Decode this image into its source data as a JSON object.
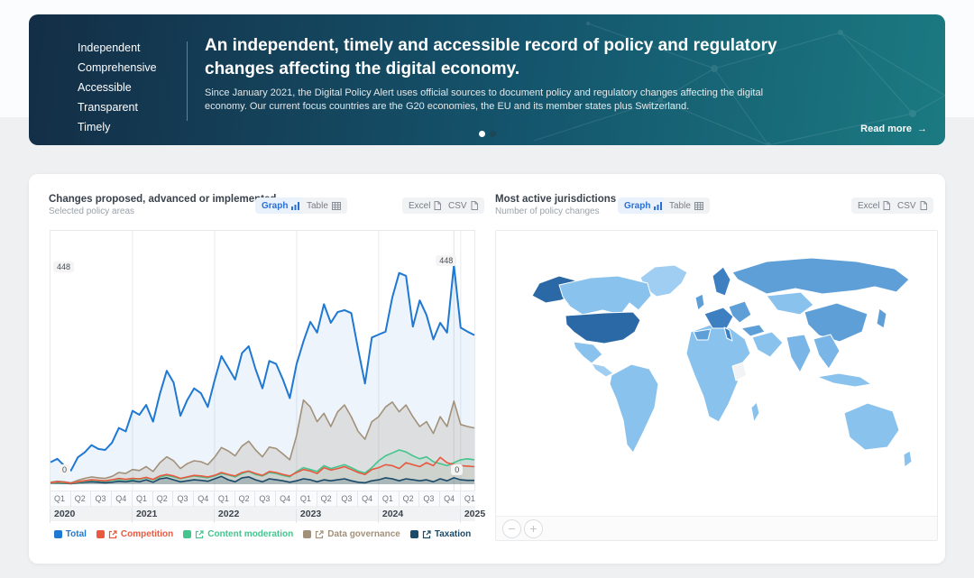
{
  "hero": {
    "qualities": [
      "Independent",
      "Comprehensive",
      "Accessible",
      "Transparent",
      "Timely"
    ],
    "title": "An independent, timely and accessible record of policy and regulatory changes affecting the digital economy.",
    "description": "Since January 2021, the Digital Policy Alert uses official sources to document policy and regulatory changes affecting the digital economy. Our current focus countries are the G20 economies, the EU and its member states plus Switzerland.",
    "read_more_label": "Read more",
    "read_more_arrow": "→",
    "carousel": {
      "dots": 2,
      "active": 0
    }
  },
  "left_panel": {
    "title": "Changes proposed, advanced or implemented",
    "subtitle": "Selected policy areas",
    "graph_label": "Graph",
    "table_label": "Table",
    "excel_label": "Excel",
    "csv_label": "CSV"
  },
  "right_panel": {
    "title": "Most active jurisdictions",
    "subtitle": "Number of policy changes",
    "graph_label": "Graph",
    "table_label": "Table",
    "excel_label": "Excel",
    "csv_label": "CSV",
    "zoom_out_label": "−",
    "zoom_in_label": "+"
  },
  "chart_data": [
    {
      "type": "line",
      "title": "Changes proposed, advanced or implemented",
      "subtitle": "Selected policy areas",
      "x_unit": "month",
      "x_range": [
        "2020-01",
        "2025-03"
      ],
      "quarter_labels": [
        "Q1",
        "Q2",
        "Q3",
        "Q4",
        "Q1",
        "Q2",
        "Q3",
        "Q4",
        "Q1",
        "Q2",
        "Q3",
        "Q4",
        "Q1",
        "Q2",
        "Q3",
        "Q4",
        "Q1",
        "Q2",
        "Q3",
        "Q4",
        "Q1"
      ],
      "year_labels": [
        "2020",
        "2021",
        "2022",
        "2023",
        "2024",
        "2025"
      ],
      "y_axis": {
        "max": 448,
        "max_label": "448",
        "min_label": "0",
        "grid": "vertical-years"
      },
      "legend_position": "bottom-center",
      "series": [
        {
          "name": "Total",
          "color": "#1f78d1",
          "fill": "rgba(31,120,209,0.08)",
          "linked": false,
          "values": [
            45,
            52,
            38,
            28,
            55,
            65,
            80,
            72,
            70,
            85,
            115,
            108,
            150,
            142,
            162,
            128,
            185,
            232,
            208,
            140,
            172,
            196,
            186,
            158,
            212,
            262,
            238,
            214,
            268,
            282,
            235,
            196,
            252,
            246,
            214,
            176,
            246,
            292,
            332,
            310,
            368,
            330,
            352,
            356,
            350,
            276,
            206,
            300,
            306,
            312,
            382,
            432,
            426,
            322,
            376,
            346,
            296,
            330,
            310,
            448,
            320,
            312,
            305
          ]
        },
        {
          "name": "Competition",
          "color": "#e8593f",
          "fill": "rgba(232,89,63,0.06)",
          "linked": true,
          "values": [
            3,
            5,
            4,
            2,
            5,
            7,
            9,
            8,
            7,
            9,
            12,
            10,
            12,
            11,
            14,
            10,
            17,
            20,
            17,
            12,
            15,
            18,
            17,
            15,
            18,
            24,
            20,
            17,
            24,
            27,
            22,
            18,
            26,
            24,
            20,
            17,
            24,
            30,
            27,
            22,
            34,
            29,
            32,
            36,
            30,
            24,
            20,
            30,
            34,
            40,
            38,
            32,
            44,
            40,
            36,
            44,
            38,
            55,
            44,
            40,
            38,
            37,
            36
          ]
        },
        {
          "name": "Content moderation",
          "color": "#45c48f",
          "fill": "rgba(69,196,143,0.10)",
          "linked": true,
          "values": [
            2,
            4,
            3,
            2,
            4,
            6,
            8,
            7,
            6,
            8,
            10,
            9,
            10,
            10,
            13,
            9,
            15,
            18,
            15,
            11,
            14,
            17,
            15,
            13,
            17,
            22,
            19,
            15,
            22,
            26,
            20,
            17,
            24,
            22,
            18,
            15,
            26,
            34,
            30,
            26,
            38,
            32,
            36,
            40,
            34,
            27,
            23,
            34,
            48,
            58,
            64,
            70,
            66,
            58,
            52,
            56,
            46,
            42,
            38,
            44,
            50,
            52,
            50
          ]
        },
        {
          "name": "Data governance",
          "color": "#a2917a",
          "fill": "rgba(162,145,122,0.22)",
          "linked": true,
          "values": [
            4,
            6,
            5,
            3,
            8,
            12,
            15,
            13,
            12,
            16,
            24,
            22,
            30,
            28,
            36,
            26,
            44,
            56,
            48,
            32,
            42,
            48,
            46,
            40,
            55,
            75,
            68,
            58,
            78,
            88,
            70,
            56,
            76,
            73,
            62,
            50,
            100,
            172,
            158,
            128,
            145,
            118,
            148,
            162,
            138,
            108,
            92,
            128,
            138,
            158,
            168,
            148,
            162,
            138,
            118,
            128,
            104,
            138,
            118,
            170,
            122,
            118,
            115
          ]
        },
        {
          "name": "Taxation",
          "color": "#1b4a68",
          "fill": "rgba(27,74,104,0.20)",
          "linked": true,
          "values": [
            2,
            3,
            2,
            1,
            3,
            4,
            5,
            4,
            3,
            4,
            6,
            5,
            7,
            5,
            9,
            4,
            11,
            13,
            9,
            5,
            7,
            9,
            8,
            6,
            11,
            16,
            9,
            5,
            13,
            15,
            9,
            5,
            11,
            9,
            7,
            4,
            7,
            11,
            9,
            5,
            9,
            7,
            9,
            11,
            7,
            4,
            3,
            7,
            9,
            13,
            11,
            7,
            11,
            9,
            7,
            9,
            5,
            11,
            7,
            13,
            9,
            8,
            8
          ]
        }
      ],
      "annotations": [
        {
          "label": "448",
          "at": "peak-total"
        },
        {
          "label": "0",
          "at": "baseline"
        }
      ]
    },
    {
      "type": "map",
      "title": "Most active jurisdictions",
      "subtitle": "Number of policy changes",
      "projection": "world",
      "colors": {
        "high": "#2a69a5",
        "medium_high": "#3d7fc1",
        "medium": "#5f9fd8",
        "medium_low": "#79b5e6",
        "low": "#8ac2ee",
        "lighter": "#a0cdf2",
        "none": "#f2f3f4"
      },
      "regions": [
        {
          "id": "usa",
          "name": "United States",
          "level": "high"
        },
        {
          "id": "alaska",
          "name": "United States (Alaska)",
          "level": "high"
        },
        {
          "id": "canada",
          "name": "Canada",
          "level": "low"
        },
        {
          "id": "greenland",
          "name": "Greenland",
          "level": "lighter"
        },
        {
          "id": "mexico",
          "name": "Mexico",
          "level": "low"
        },
        {
          "id": "central-america",
          "name": "Central America",
          "level": "lighter"
        },
        {
          "id": "south-america",
          "name": "South America",
          "level": "low"
        },
        {
          "id": "africa",
          "name": "Africa",
          "level": "low"
        },
        {
          "id": "madagascar",
          "name": "Madagascar",
          "level": "low"
        },
        {
          "id": "scandinavia",
          "name": "Scandinavia",
          "level": "medium_high"
        },
        {
          "id": "uk",
          "name": "United Kingdom",
          "level": "medium"
        },
        {
          "id": "western-europe",
          "name": "Western Europe (EU)",
          "level": "medium_high"
        },
        {
          "id": "spain",
          "name": "Spain",
          "level": "medium"
        },
        {
          "id": "italy",
          "name": "Italy",
          "level": "medium_high"
        },
        {
          "id": "eastern-europe",
          "name": "Eastern Europe",
          "level": "medium"
        },
        {
          "id": "turkey",
          "name": "Turkey",
          "level": "medium"
        },
        {
          "id": "russia",
          "name": "Russia",
          "level": "medium"
        },
        {
          "id": "central-asia",
          "name": "Central Asia",
          "level": "low"
        },
        {
          "id": "middle-east",
          "name": "Middle East",
          "level": "low"
        },
        {
          "id": "china",
          "name": "China",
          "level": "medium"
        },
        {
          "id": "india",
          "name": "India",
          "level": "medium_low"
        },
        {
          "id": "se-asia",
          "name": "South-East Asia",
          "level": "medium_low"
        },
        {
          "id": "japan",
          "name": "Japan",
          "level": "medium"
        },
        {
          "id": "indonesia",
          "name": "Indonesia",
          "level": "low"
        },
        {
          "id": "australia",
          "name": "Australia",
          "level": "low"
        },
        {
          "id": "new-zealand",
          "name": "New Zealand",
          "level": "low"
        },
        {
          "id": "east-africa-gap",
          "name": "No data",
          "level": "none"
        }
      ]
    }
  ]
}
